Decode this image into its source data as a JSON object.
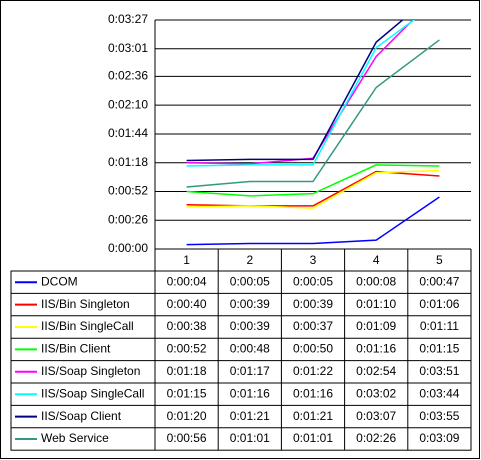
{
  "chart_data": {
    "type": "line",
    "categories": [
      "1",
      "2",
      "3",
      "4",
      "5"
    ],
    "ylim": [
      0,
      207
    ],
    "yticks": [
      {
        "value": 0,
        "label": "0:00:00"
      },
      {
        "value": 26,
        "label": "0:00:26"
      },
      {
        "value": 52,
        "label": "0:00:52"
      },
      {
        "value": 78,
        "label": "0:01:18"
      },
      {
        "value": 104,
        "label": "0:01:44"
      },
      {
        "value": 130,
        "label": "0:02:10"
      },
      {
        "value": 156,
        "label": "0:02:36"
      },
      {
        "value": 181,
        "label": "0:03:01"
      },
      {
        "value": 207,
        "label": "0:03:27"
      }
    ],
    "grid": true,
    "series": [
      {
        "name": "DCOM",
        "color": "#0000ff",
        "values": [
          4,
          5,
          5,
          8,
          47
        ],
        "value_labels": [
          "0:00:04",
          "0:00:05",
          "0:00:05",
          "0:00:08",
          "0:00:47"
        ]
      },
      {
        "name": "IIS/Bin Singleton",
        "color": "#ff0000",
        "values": [
          40,
          39,
          39,
          70,
          66
        ],
        "value_labels": [
          "0:00:40",
          "0:00:39",
          "0:00:39",
          "0:01:10",
          "0:01:06"
        ]
      },
      {
        "name": "IIS/Bin SingleCall",
        "color": "#ffff00",
        "values": [
          38,
          39,
          37,
          69,
          71
        ],
        "value_labels": [
          "0:00:38",
          "0:00:39",
          "0:00:37",
          "0:01:09",
          "0:01:11"
        ]
      },
      {
        "name": "IIS/Bin Client",
        "color": "#00ff00",
        "values": [
          52,
          48,
          50,
          76,
          75
        ],
        "value_labels": [
          "0:00:52",
          "0:00:48",
          "0:00:50",
          "0:01:16",
          "0:01:15"
        ]
      },
      {
        "name": "IIS/Soap Singleton",
        "color": "#ff00ff",
        "values": [
          78,
          77,
          82,
          174,
          231
        ],
        "value_labels": [
          "0:01:18",
          "0:01:17",
          "0:01:22",
          "0:02:54",
          "0:03:51"
        ]
      },
      {
        "name": "IIS/Soap SingleCall",
        "color": "#00ffff",
        "values": [
          75,
          76,
          76,
          182,
          224
        ],
        "value_labels": [
          "0:01:15",
          "0:01:16",
          "0:01:16",
          "0:03:02",
          "0:03:44"
        ]
      },
      {
        "name": "IIS/Soap Client",
        "color": "#000080",
        "values": [
          80,
          81,
          81,
          187,
          235
        ],
        "value_labels": [
          "0:01:20",
          "0:01:21",
          "0:01:21",
          "0:03:07",
          "0:03:55"
        ]
      },
      {
        "name": "Web Service",
        "color": "#339980",
        "values": [
          56,
          61,
          61,
          146,
          189
        ],
        "value_labels": [
          "0:00:56",
          "0:01:01",
          "0:01:01",
          "0:02:26",
          "0:03:09"
        ]
      }
    ]
  }
}
